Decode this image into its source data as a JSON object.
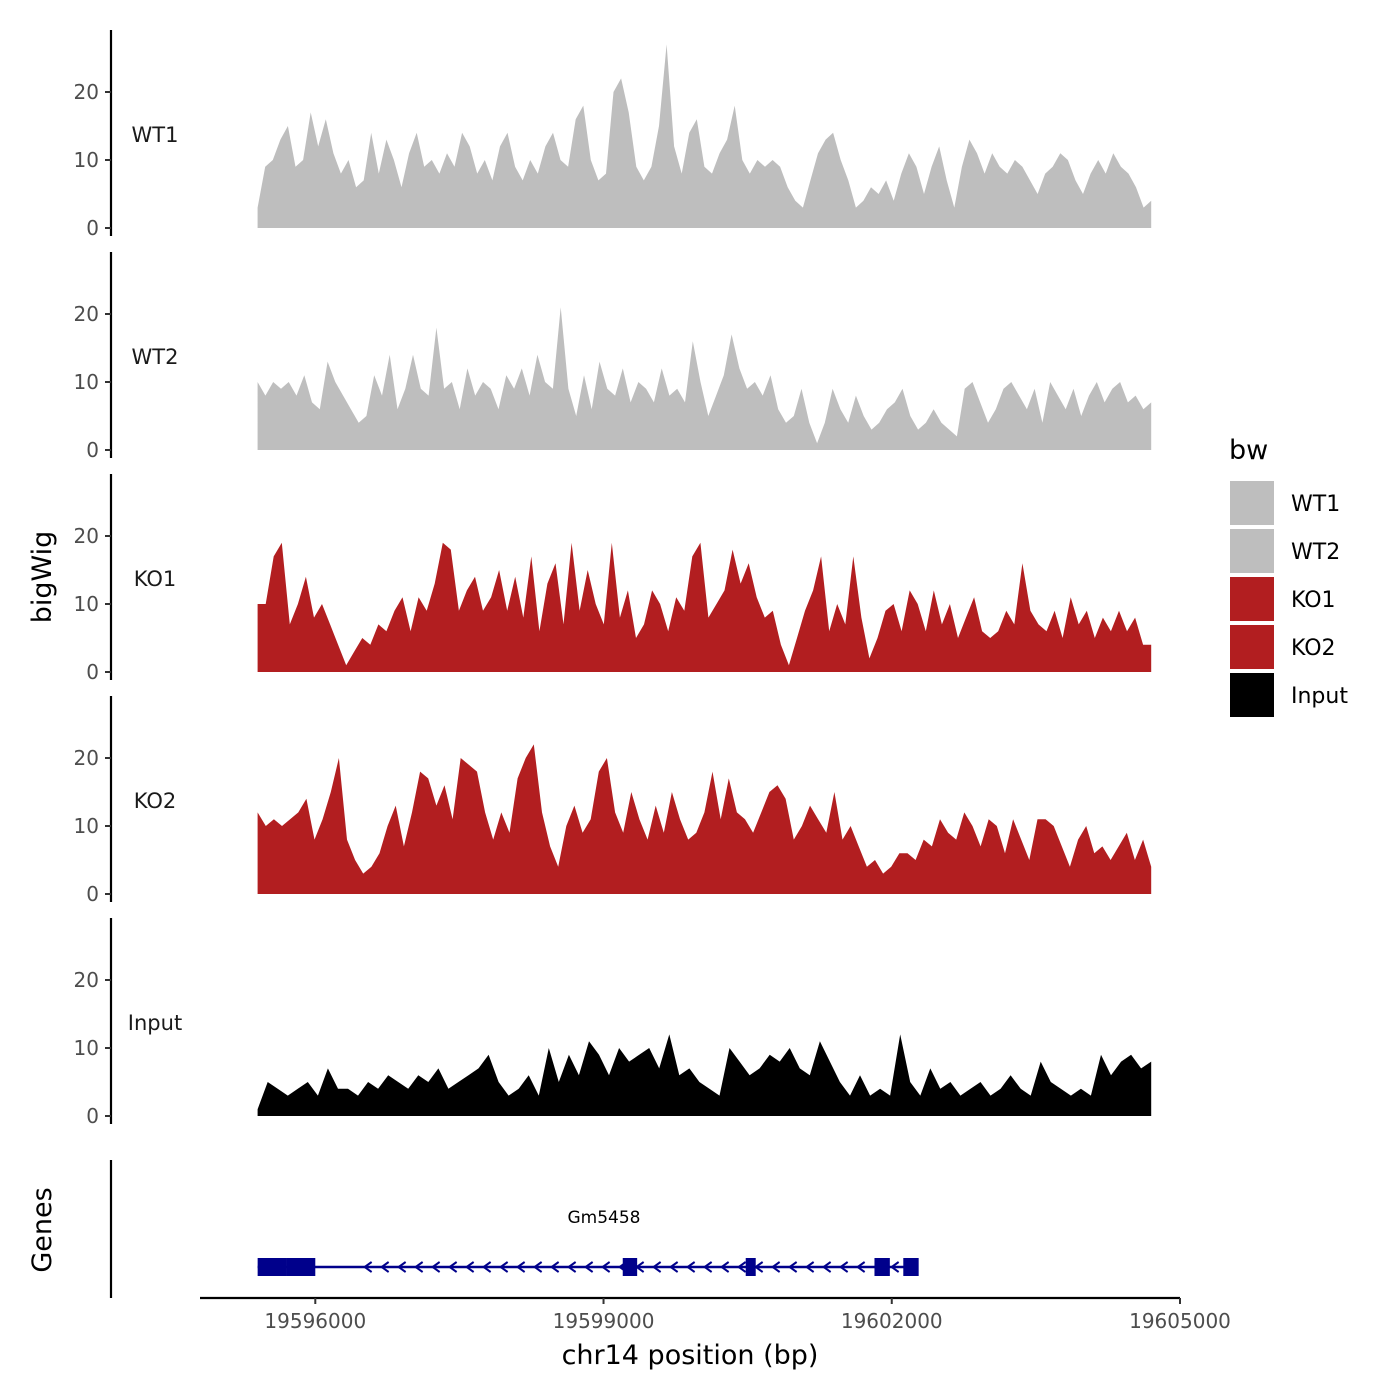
{
  "chart_data": {
    "type": "area",
    "ylabel": "bigWig",
    "xlabel": "chr14 position (bp)",
    "ylim": [
      0,
      28
    ],
    "y_ticks": [
      0,
      10,
      20
    ],
    "xlim": [
      19594800,
      19605000
    ],
    "x_ticks": [
      19596000,
      19599000,
      19602000,
      19605000
    ],
    "x_tick_labels": [
      "19596000",
      "19599000",
      "19602000",
      "19605000"
    ],
    "x_start": 19595400,
    "x_end": 19604700,
    "legend": {
      "title": "bw",
      "position": "right",
      "entries": [
        {
          "label": "WT1",
          "color": "#bebebe"
        },
        {
          "label": "WT2",
          "color": "#bebebe"
        },
        {
          "label": "KO1",
          "color": "#b21e20"
        },
        {
          "label": "KO2",
          "color": "#b21e20"
        },
        {
          "label": "Input",
          "color": "#000000"
        }
      ]
    },
    "series": [
      {
        "name": "WT1",
        "color": "#bebebe",
        "values": [
          3,
          9,
          10,
          13,
          15,
          9,
          10,
          17,
          12,
          16,
          11,
          8,
          10,
          6,
          7,
          14,
          8,
          13,
          10,
          6,
          11,
          14,
          9,
          10,
          8,
          11,
          9,
          14,
          12,
          8,
          10,
          7,
          12,
          14,
          9,
          7,
          10,
          8,
          12,
          14,
          10,
          9,
          16,
          18,
          10,
          7,
          8,
          20,
          22,
          17,
          9,
          7,
          9,
          15,
          27,
          12,
          8,
          14,
          16,
          9,
          8,
          11,
          13,
          18,
          10,
          8,
          10,
          9,
          10,
          9,
          6,
          4,
          3,
          7,
          11,
          13,
          14,
          10,
          7,
          3,
          4,
          6,
          5,
          7,
          4,
          8,
          11,
          9,
          5,
          9,
          12,
          7,
          3,
          9,
          13,
          11,
          8,
          11,
          9,
          8,
          10,
          9,
          7,
          5,
          8,
          9,
          11,
          10,
          7,
          5,
          8,
          10,
          8,
          11,
          9,
          8,
          6,
          3,
          4
        ]
      },
      {
        "name": "WT2",
        "color": "#bebebe",
        "values": [
          10,
          8,
          10,
          9,
          10,
          8,
          11,
          7,
          6,
          13,
          10,
          8,
          6,
          4,
          5,
          11,
          8,
          14,
          6,
          9,
          14,
          9,
          8,
          18,
          9,
          10,
          6,
          12,
          8,
          10,
          9,
          6,
          11,
          9,
          12,
          8,
          14,
          10,
          9,
          21,
          9,
          5,
          11,
          6,
          13,
          9,
          8,
          12,
          7,
          10,
          9,
          7,
          12,
          8,
          9,
          7,
          16,
          10,
          5,
          8,
          11,
          17,
          12,
          9,
          10,
          8,
          11,
          6,
          4,
          5,
          9,
          4,
          1,
          4,
          9,
          6,
          4,
          8,
          5,
          3,
          4,
          6,
          7,
          9,
          5,
          3,
          4,
          6,
          4,
          3,
          2,
          9,
          10,
          7,
          4,
          6,
          9,
          10,
          8,
          6,
          9,
          4,
          10,
          8,
          6,
          9,
          5,
          8,
          10,
          7,
          9,
          10,
          7,
          8,
          6,
          7
        ]
      },
      {
        "name": "KO1",
        "color": "#b21e20",
        "values": [
          10,
          10,
          17,
          19,
          7,
          10,
          14,
          8,
          10,
          7,
          4,
          1,
          3,
          5,
          4,
          7,
          6,
          9,
          11,
          6,
          11,
          9,
          13,
          19,
          18,
          9,
          12,
          14,
          9,
          11,
          15,
          9,
          14,
          8,
          17,
          6,
          13,
          16,
          7,
          19,
          9,
          15,
          10,
          7,
          19,
          8,
          12,
          5,
          7,
          12,
          10,
          6,
          11,
          9,
          17,
          19,
          8,
          10,
          12,
          18,
          13,
          16,
          11,
          8,
          9,
          4,
          1,
          5,
          9,
          12,
          17,
          6,
          10,
          7,
          17,
          8,
          2,
          5,
          9,
          10,
          6,
          12,
          10,
          6,
          12,
          7,
          10,
          5,
          8,
          11,
          6,
          5,
          6,
          9,
          7,
          16,
          9,
          7,
          6,
          9,
          5,
          11,
          7,
          9,
          5,
          8,
          6,
          9,
          6,
          8,
          4,
          4
        ]
      },
      {
        "name": "KO2",
        "color": "#b21e20",
        "values": [
          12,
          10,
          11,
          10,
          11,
          12,
          14,
          8,
          11,
          15,
          20,
          8,
          5,
          3,
          4,
          6,
          10,
          13,
          7,
          12,
          18,
          17,
          13,
          16,
          11,
          20,
          19,
          18,
          12,
          8,
          12,
          9,
          17,
          20,
          22,
          12,
          7,
          4,
          10,
          13,
          9,
          11,
          18,
          20,
          12,
          9,
          15,
          11,
          8,
          13,
          9,
          15,
          11,
          8,
          9,
          12,
          18,
          11,
          17,
          12,
          11,
          9,
          12,
          15,
          16,
          14,
          8,
          10,
          13,
          11,
          9,
          15,
          8,
          10,
          7,
          4,
          5,
          3,
          4,
          6,
          6,
          5,
          8,
          7,
          11,
          9,
          8,
          12,
          10,
          7,
          11,
          10,
          6,
          11,
          8,
          5,
          11,
          11,
          10,
          7,
          4,
          8,
          10,
          6,
          7,
          5,
          7,
          9,
          5,
          8,
          4
        ]
      },
      {
        "name": "Input",
        "color": "#000000",
        "values": [
          1,
          5,
          4,
          3,
          4,
          5,
          3,
          7,
          4,
          4,
          3,
          5,
          4,
          6,
          5,
          4,
          6,
          5,
          7,
          4,
          5,
          6,
          7,
          9,
          5,
          3,
          4,
          6,
          3,
          10,
          5,
          9,
          6,
          11,
          9,
          6,
          10,
          8,
          9,
          10,
          7,
          12,
          6,
          7,
          5,
          4,
          3,
          10,
          8,
          6,
          7,
          9,
          8,
          10,
          7,
          6,
          11,
          8,
          5,
          3,
          6,
          3,
          4,
          3,
          12,
          5,
          3,
          7,
          4,
          5,
          3,
          4,
          5,
          3,
          4,
          6,
          4,
          3,
          8,
          5,
          4,
          3,
          4,
          3,
          9,
          6,
          8,
          9,
          7,
          8
        ]
      }
    ],
    "genes_track": {
      "label": "Genes",
      "gene_name": "Gm5458",
      "color": "#00008b",
      "strand": "-",
      "start": 19595400,
      "end": 19602200,
      "exons": [
        [
          19595400,
          19595700
        ],
        [
          19595700,
          19596000
        ],
        [
          19599200,
          19599350
        ],
        [
          19600480,
          19600580
        ],
        [
          19601820,
          19601980
        ],
        [
          19602120,
          19602280
        ]
      ]
    }
  }
}
